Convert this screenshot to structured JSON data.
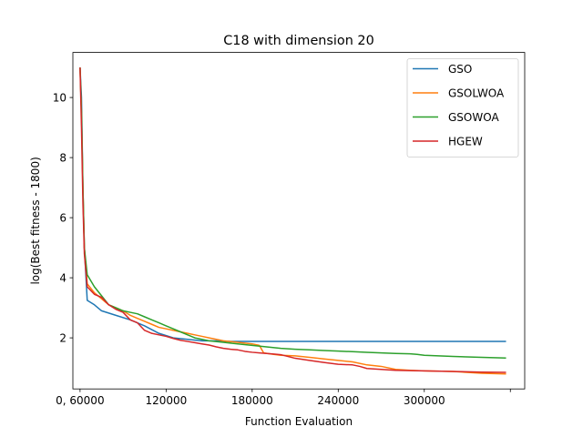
{
  "chart_data": {
    "type": "line",
    "title": "C18 with dimension 20",
    "xlabel": "Function Evaluation",
    "ylabel": "log(Best fitness - 1800)",
    "xlim": [
      55000,
      370000
    ],
    "ylim": [
      0.3,
      11.5
    ],
    "x_ticks": [
      60000,
      120000,
      180000,
      240000,
      300000,
      360000
    ],
    "x_tick_labels": [
      "0, 60000",
      "120000",
      "180000",
      "240000",
      "300000",
      ""
    ],
    "y_ticks": [
      2,
      4,
      6,
      8,
      10
    ],
    "y_tick_labels": [
      "2",
      "4",
      "6",
      "8",
      "10"
    ],
    "grid": false,
    "legend_position": "top-right",
    "series": [
      {
        "name": "GSO",
        "color": "#1f77b4",
        "x": [
          60000,
          61000,
          62000,
          63000,
          65000,
          70000,
          75000,
          85000,
          95000,
          105000,
          115000,
          125000,
          135000,
          145000,
          155000,
          165000,
          175000,
          180000,
          190000,
          200000,
          220000,
          240000,
          260000,
          280000,
          300000,
          320000,
          340000,
          357000
        ],
        "y": [
          11.0,
          10.0,
          7.0,
          5.0,
          3.25,
          3.1,
          2.9,
          2.75,
          2.6,
          2.4,
          2.15,
          2.0,
          1.95,
          1.9,
          1.9,
          1.88,
          1.88,
          1.88,
          1.88,
          1.88,
          1.88,
          1.88,
          1.88,
          1.88,
          1.88,
          1.88,
          1.88,
          1.88
        ]
      },
      {
        "name": "GSOLWOA",
        "color": "#ff7f0e",
        "x": [
          60000,
          61000,
          62000,
          63000,
          65000,
          70000,
          75000,
          80000,
          85000,
          90000,
          95000,
          100000,
          105000,
          110000,
          115000,
          120000,
          125000,
          130000,
          135000,
          140000,
          145000,
          150000,
          155000,
          160000,
          170000,
          180000,
          185000,
          188000,
          195000,
          200000,
          210000,
          220000,
          230000,
          240000,
          250000,
          260000,
          270000,
          280000,
          290000,
          300000,
          320000,
          340000,
          357000
        ],
        "y": [
          11.0,
          9.5,
          7.0,
          5.0,
          3.8,
          3.5,
          3.3,
          3.1,
          3.0,
          2.9,
          2.75,
          2.65,
          2.55,
          2.45,
          2.35,
          2.3,
          2.25,
          2.2,
          2.15,
          2.1,
          2.05,
          2.0,
          1.95,
          1.9,
          1.85,
          1.8,
          1.75,
          1.5,
          1.45,
          1.42,
          1.4,
          1.35,
          1.3,
          1.25,
          1.2,
          1.1,
          1.05,
          0.95,
          0.92,
          0.9,
          0.88,
          0.82,
          0.8
        ]
      },
      {
        "name": "GSOWOA",
        "color": "#2ca02c",
        "x": [
          60000,
          61000,
          62000,
          63000,
          65000,
          70000,
          75000,
          80000,
          85000,
          90000,
          95000,
          100000,
          105000,
          110000,
          115000,
          120000,
          125000,
          130000,
          135000,
          140000,
          145000,
          150000,
          160000,
          170000,
          180000,
          190000,
          200000,
          210000,
          220000,
          230000,
          240000,
          250000,
          260000,
          270000,
          280000,
          290000,
          295000,
          300000,
          320000,
          340000,
          357000
        ],
        "y": [
          11.0,
          9.5,
          7.0,
          5.0,
          4.1,
          3.7,
          3.4,
          3.1,
          3.0,
          2.9,
          2.85,
          2.8,
          2.7,
          2.6,
          2.5,
          2.4,
          2.3,
          2.2,
          2.1,
          2.0,
          1.95,
          1.9,
          1.85,
          1.8,
          1.75,
          1.7,
          1.65,
          1.62,
          1.6,
          1.58,
          1.56,
          1.54,
          1.52,
          1.5,
          1.48,
          1.47,
          1.45,
          1.42,
          1.38,
          1.35,
          1.33
        ]
      },
      {
        "name": "HGEW",
        "color": "#d62728",
        "x": [
          60000,
          61000,
          62000,
          63000,
          65000,
          70000,
          75000,
          80000,
          85000,
          90000,
          95000,
          100000,
          105000,
          110000,
          115000,
          120000,
          125000,
          130000,
          135000,
          140000,
          145000,
          150000,
          155000,
          160000,
          165000,
          170000,
          175000,
          180000,
          185000,
          190000,
          195000,
          200000,
          205000,
          210000,
          220000,
          230000,
          240000,
          250000,
          255000,
          260000,
          280000,
          300000,
          320000,
          340000,
          357000
        ],
        "y": [
          11.0,
          9.0,
          6.5,
          4.8,
          3.7,
          3.45,
          3.35,
          3.1,
          2.95,
          2.85,
          2.6,
          2.5,
          2.25,
          2.15,
          2.1,
          2.05,
          1.98,
          1.92,
          1.88,
          1.84,
          1.8,
          1.76,
          1.7,
          1.65,
          1.62,
          1.6,
          1.55,
          1.52,
          1.5,
          1.48,
          1.46,
          1.44,
          1.38,
          1.32,
          1.25,
          1.18,
          1.12,
          1.1,
          1.05,
          0.98,
          0.92,
          0.9,
          0.88,
          0.86,
          0.85
        ]
      }
    ]
  }
}
